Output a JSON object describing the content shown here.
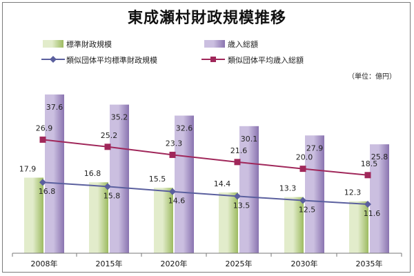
{
  "chart_data": {
    "type": "bar+line",
    "title": "東成瀬村財政規模推移",
    "unit": "（単位：億円）",
    "categories": [
      "2008年",
      "2015年",
      "2020年",
      "2025年",
      "2030年",
      "2035年"
    ],
    "ylim": [
      0,
      42
    ],
    "grid": false,
    "legend_position": "top",
    "series": [
      {
        "name": "標準財政規模",
        "kind": "bar",
        "color": "#9dbb61",
        "values": [
          17.9,
          16.8,
          15.5,
          14.4,
          13.3,
          12.3
        ]
      },
      {
        "name": "歳入総額",
        "kind": "bar",
        "color": "#8a74b0",
        "values": [
          37.6,
          35.2,
          32.6,
          30.1,
          27.9,
          25.8
        ]
      },
      {
        "name": "類似団体平均標準財政規模",
        "kind": "line",
        "color": "#5a5f9e",
        "marker": "diamond",
        "values": [
          16.8,
          15.8,
          14.6,
          13.5,
          12.5,
          11.6
        ]
      },
      {
        "name": "類似団体平均歳入総額",
        "kind": "line",
        "color": "#a0275a",
        "marker": "square",
        "values": [
          26.9,
          25.2,
          23.3,
          21.6,
          20.0,
          18.5
        ]
      }
    ]
  }
}
